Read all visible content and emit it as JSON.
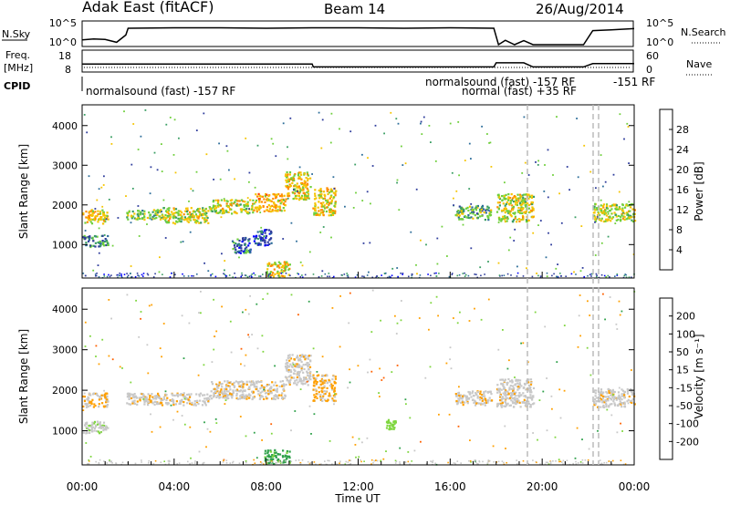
{
  "header": {
    "site": "Adak East (fitACF)",
    "beam": "Beam 14",
    "date": "26/Aug/2014"
  },
  "top_panels": {
    "nsky": {
      "label": "N.Sky",
      "ticks_left": [
        "10^5",
        "10^0"
      ],
      "ticks_right": [
        "10^5",
        "10^0"
      ],
      "right_label": "N.Search"
    },
    "freq": {
      "label_line1": "Freq.",
      "label_line2": "[MHz]",
      "ticks_left": [
        "18",
        "8"
      ],
      "ticks_right": [
        "60",
        "0"
      ],
      "right_label": "Nave"
    },
    "cpid": {
      "label": "CPID",
      "annotations": [
        "normalsound (fast) -157 RF",
        "normalsound (fast) -157 RF",
        "normal (fast) +35 RF",
        "-151 RF"
      ]
    }
  },
  "power_panel": {
    "ylabel": "Slant Range [km]",
    "cbar_label": "Power [dB]",
    "cbar_ticks": [
      "28",
      "24",
      "20",
      "16",
      "12",
      "8",
      "4"
    ]
  },
  "velocity_panel": {
    "ylabel": "Slant Range [km]",
    "cbar_label": "Velocity [m s⁻¹]",
    "cbar_ticks": [
      "200",
      "100",
      "50",
      "15",
      "-15",
      "-50",
      "-100",
      "-200"
    ]
  },
  "xaxis": {
    "label": "Time UT",
    "ticks": [
      "00:00",
      "04:00",
      "08:00",
      "12:00",
      "16:00",
      "20:00",
      "00:00"
    ]
  },
  "colors": {
    "power": [
      "#0000ff",
      "#2f3d9c",
      "#2d6e9a",
      "#3a9e63",
      "#6fcf3c",
      "#f5c400",
      "#ff8c00",
      "#ff4000",
      "#ff0000"
    ],
    "velocity": [
      "#e00000",
      "#ff6000",
      "#ffa000",
      "#c8c8c8",
      "#7fd63f",
      "#2fa14a",
      "#2a5fa8",
      "#1f2fbf"
    ]
  },
  "chart_data": [
    {
      "type": "line",
      "title": "N.Sky / N.Search",
      "x_hours": [
        0,
        0.5,
        1.0,
        1.5,
        1.9,
        2.0,
        4.0,
        6.0,
        8.0,
        10.0,
        12.0,
        14.0,
        16.0,
        17.9,
        18.1,
        18.4,
        18.8,
        19.2,
        19.6,
        21.8,
        22.2,
        23.0,
        24.0
      ],
      "nsky_log10": [
        1.2,
        1.4,
        1.3,
        0.6,
        2.4,
        4.1,
        4.2,
        4.2,
        4.1,
        4.2,
        4.2,
        4.1,
        4.2,
        4.1,
        0.0,
        1.1,
        0.0,
        1.0,
        0.0,
        0.0,
        3.5,
        3.7,
        4.0
      ],
      "nsearch": "dotted"
    },
    {
      "type": "line",
      "title": "Freq / Nave",
      "x_hours": [
        0,
        1.75,
        1.8,
        10.0,
        10.05,
        17.9,
        18.0,
        18.4,
        18.8,
        19.2,
        19.6,
        21.8,
        22.2,
        24.0
      ],
      "freq_mhz": [
        11.8,
        11.8,
        11.8,
        11.8,
        10.0,
        10.0,
        12.5,
        12.5,
        12.5,
        12.5,
        10.0,
        10.0,
        12.0,
        12.0
      ],
      "nave": 20
    },
    {
      "type": "heatmap",
      "title": "Power [dB]",
      "x_range_hours": [
        0,
        24
      ],
      "y_range_km": [
        180,
        4500
      ],
      "blobs": [
        {
          "t0": 0.0,
          "t1": 1.1,
          "r0": 1550,
          "r1": 1900,
          "v": 18
        },
        {
          "t0": 0.0,
          "t1": 1.1,
          "r0": 950,
          "r1": 1250,
          "v": 10
        },
        {
          "t0": 1.9,
          "t1": 3.5,
          "r0": 1650,
          "r1": 1900,
          "v": 14
        },
        {
          "t0": 3.5,
          "t1": 5.5,
          "r0": 1550,
          "r1": 1950,
          "v": 16
        },
        {
          "t0": 5.5,
          "t1": 7.5,
          "r0": 1800,
          "r1": 2150,
          "v": 16
        },
        {
          "t0": 7.5,
          "t1": 8.8,
          "r0": 1850,
          "r1": 2300,
          "v": 20
        },
        {
          "t0": 8.8,
          "t1": 9.9,
          "r0": 2150,
          "r1": 2850,
          "v": 18
        },
        {
          "t0": 10.0,
          "t1": 11.0,
          "r0": 1750,
          "r1": 2450,
          "v": 18
        },
        {
          "t0": 6.5,
          "t1": 7.3,
          "r0": 800,
          "r1": 1200,
          "v": 8
        },
        {
          "t0": 7.4,
          "t1": 8.2,
          "r0": 1000,
          "r1": 1400,
          "v": 6
        },
        {
          "t0": 8.0,
          "t1": 9.0,
          "r0": 200,
          "r1": 600,
          "v": 18
        },
        {
          "t0": 16.2,
          "t1": 17.8,
          "r0": 1650,
          "r1": 2000,
          "v": 12
        },
        {
          "t0": 18.0,
          "t1": 19.6,
          "r0": 1600,
          "r1": 2300,
          "v": 16
        },
        {
          "t0": 22.2,
          "t1": 24.0,
          "r0": 1600,
          "r1": 2050,
          "v": 16
        }
      ]
    },
    {
      "type": "heatmap",
      "title": "Velocity [m s⁻¹]",
      "x_range_hours": [
        0,
        24
      ],
      "y_range_km": [
        180,
        4500
      ],
      "blobs": [
        {
          "t0": 0.0,
          "t1": 1.1,
          "r0": 1600,
          "r1": 1950,
          "v": -10
        },
        {
          "t0": 0.0,
          "t1": 1.1,
          "r0": 950,
          "r1": 1250,
          "v": 5
        },
        {
          "t0": 1.9,
          "t1": 5.5,
          "r0": 1650,
          "r1": 1950,
          "v": -5
        },
        {
          "t0": 5.5,
          "t1": 8.8,
          "r0": 1800,
          "r1": 2250,
          "v": -8
        },
        {
          "t0": 8.8,
          "t1": 9.9,
          "r0": 2150,
          "r1": 2900,
          "v": -5
        },
        {
          "t0": 10.0,
          "t1": 11.0,
          "r0": 1750,
          "r1": 2400,
          "v": -20
        },
        {
          "t0": 7.9,
          "t1": 9.0,
          "r0": 200,
          "r1": 550,
          "v": 60
        },
        {
          "t0": 13.2,
          "t1": 13.6,
          "r0": 1050,
          "r1": 1300,
          "v": 30
        },
        {
          "t0": 16.2,
          "t1": 17.8,
          "r0": 1650,
          "r1": 2000,
          "v": -5
        },
        {
          "t0": 18.0,
          "t1": 19.6,
          "r0": 1600,
          "r1": 2300,
          "v": -5
        },
        {
          "t0": 22.2,
          "t1": 24.0,
          "r0": 1600,
          "r1": 2050,
          "v": -5
        }
      ]
    }
  ]
}
